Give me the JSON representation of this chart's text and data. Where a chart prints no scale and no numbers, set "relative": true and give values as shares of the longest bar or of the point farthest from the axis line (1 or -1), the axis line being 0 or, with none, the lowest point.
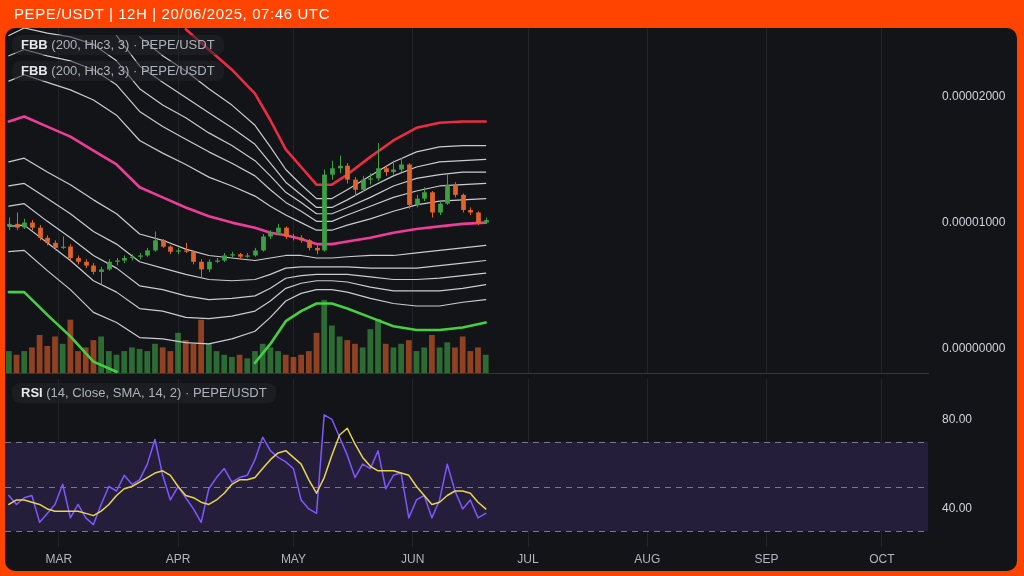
{
  "chart_data": [
    {
      "type": "candlestick",
      "title": "PEPE/USDT | 12H | 20/06/2025, 07:46 UTC",
      "annotations": [
        "FBB (200, Hlc3, 3) · PEPE/USDT",
        "FBB (200, Hlc3, 3) · PEPE/USDT"
      ],
      "x": [
        "2025-02-16",
        "2025-02-18",
        "2025-02-20",
        "2025-02-22",
        "2025-02-24",
        "2025-02-26",
        "2025-02-28",
        "2025-03-02",
        "2025-03-04",
        "2025-03-06",
        "2025-03-08",
        "2025-03-10",
        "2025-03-12",
        "2025-03-14",
        "2025-03-16",
        "2025-03-18",
        "2025-03-20",
        "2025-03-22",
        "2025-03-24",
        "2025-03-26",
        "2025-03-28",
        "2025-03-30",
        "2025-04-01",
        "2025-04-03",
        "2025-04-05",
        "2025-04-07",
        "2025-04-09",
        "2025-04-11",
        "2025-04-13",
        "2025-04-15",
        "2025-04-17",
        "2025-04-19",
        "2025-04-21",
        "2025-04-23",
        "2025-04-25",
        "2025-04-27",
        "2025-04-29",
        "2025-05-01",
        "2025-05-03",
        "2025-05-05",
        "2025-05-07",
        "2025-05-09",
        "2025-05-11",
        "2025-05-13",
        "2025-05-15",
        "2025-05-17",
        "2025-05-19",
        "2025-05-21",
        "2025-05-23",
        "2025-05-25",
        "2025-05-27",
        "2025-05-29",
        "2025-05-31",
        "2025-06-02",
        "2025-06-04",
        "2025-06-06",
        "2025-06-08",
        "2025-06-10",
        "2025-06-12",
        "2025-06-14",
        "2025-06-16",
        "2025-06-18",
        "2025-06-20"
      ],
      "ohlc": [
        [
          9.7e-06,
          1.04e-05,
          9.4e-06,
          9.9e-06
        ],
        [
          9.9e-06,
          1.08e-05,
          9.4e-06,
          9.6e-06
        ],
        [
          9.6e-06,
          1.03e-05,
          9.5e-06,
          1e-05
        ],
        [
          1e-05,
          1.02e-05,
          9.4e-06,
          9.6e-06
        ],
        [
          9.6e-06,
          9.8e-06,
          8.6e-06,
          8.8e-06
        ],
        [
          8.8e-06,
          9e-06,
          8.2e-06,
          8.4e-06
        ],
        [
          8.4e-06,
          8.6e-06,
          7.8e-06,
          8e-06
        ],
        [
          8e-06,
          8.9e-06,
          7.9e-06,
          8.1e-06
        ],
        [
          8.1e-06,
          8.3e-06,
          7e-06,
          7.2e-06
        ],
        [
          7.2e-06,
          7.4e-06,
          6.7e-06,
          6.9e-06
        ],
        [
          6.9e-06,
          7.1e-06,
          6.4e-06,
          6.6e-06
        ],
        [
          6.6e-06,
          6.8e-06,
          5.9e-06,
          6.1e-06
        ],
        [
          6.1e-06,
          6.5e-06,
          5.1e-06,
          6.3e-06
        ],
        [
          6.3e-06,
          7.1e-06,
          6.2e-06,
          6.9e-06
        ],
        [
          6.9e-06,
          7.2e-06,
          6.6e-06,
          7e-06
        ],
        [
          7e-06,
          7.4e-06,
          6.8e-06,
          7.2e-06
        ],
        [
          7.2e-06,
          7.5e-06,
          7e-06,
          7.3e-06
        ],
        [
          7.3e-06,
          7.6e-06,
          7.1e-06,
          7.4e-06
        ],
        [
          7.4e-06,
          8e-06,
          7.3e-06,
          7.8e-06
        ],
        [
          7.8e-06,
          9.3e-06,
          7.7e-06,
          8.6e-06
        ],
        [
          8.6e-06,
          8.7e-06,
          8e-06,
          8.1e-06
        ],
        [
          8.1e-06,
          8.2e-06,
          7.5e-06,
          7.7e-06
        ],
        [
          7.7e-06,
          8e-06,
          7.5e-06,
          7.8e-06
        ],
        [
          7.8e-06,
          8.4e-06,
          7.6e-06,
          7.7e-06
        ],
        [
          7.7e-06,
          7.8e-06,
          6.7e-06,
          6.9e-06
        ],
        [
          6.9e-06,
          7.1e-06,
          5.7e-06,
          6.3e-06
        ],
        [
          6.3e-06,
          7.1e-06,
          6.1e-06,
          6.9e-06
        ],
        [
          6.9e-06,
          7.2e-06,
          6.8e-06,
          7e-06
        ],
        [
          7e-06,
          7.6e-06,
          6.9e-06,
          7.4e-06
        ],
        [
          7.4e-06,
          7.7e-06,
          7.2e-06,
          7.5e-06
        ],
        [
          7.5e-06,
          7.6e-06,
          7.1e-06,
          7.3e-06
        ],
        [
          7.3e-06,
          7.6e-06,
          7.2e-06,
          7.4e-06
        ],
        [
          7.4e-06,
          8e-06,
          7.3e-06,
          7.8e-06
        ],
        [
          7.8e-06,
          9.1e-06,
          7.7e-06,
          8.9e-06
        ],
        [
          8.9e-06,
          9.4e-06,
          8.7e-06,
          9.2e-06
        ],
        [
          9.2e-06,
          9.9e-06,
          9e-06,
          9.6e-06
        ],
        [
          9.6e-06,
          9.7e-06,
          8.7e-06,
          8.9e-06
        ],
        [
          8.9e-06,
          9.1e-06,
          8.6e-06,
          8.8e-06
        ],
        [
          8.8e-06,
          9e-06,
          8.4e-06,
          8.6e-06
        ],
        [
          8.6e-06,
          8.7e-06,
          7.8e-06,
          8e-06
        ],
        [
          8e-06,
          8.2e-06,
          7.5e-06,
          7.8e-06
        ],
        [
          7.8e-06,
          1.42e-05,
          7.7e-06,
          1.38e-05
        ],
        [
          1.38e-05,
          1.49e-05,
          1.34e-05,
          1.43e-05
        ],
        [
          1.43e-05,
          1.53e-05,
          1.39e-05,
          1.45e-05
        ],
        [
          1.45e-05,
          1.47e-05,
          1.31e-05,
          1.34e-05
        ],
        [
          1.34e-05,
          1.36e-05,
          1.21e-05,
          1.26e-05
        ],
        [
          1.26e-05,
          1.37e-05,
          1.24e-05,
          1.34e-05
        ],
        [
          1.34e-05,
          1.39e-05,
          1.3e-05,
          1.35e-05
        ],
        [
          1.35e-05,
          1.63e-05,
          1.33e-05,
          1.43e-05
        ],
        [
          1.43e-05,
          1.45e-05,
          1.37e-05,
          1.4e-05
        ],
        [
          1.4e-05,
          1.49e-05,
          1.38e-05,
          1.42e-05
        ],
        [
          1.42e-05,
          1.51e-05,
          1.4e-05,
          1.46e-05
        ],
        [
          1.46e-05,
          1.47e-05,
          1.11e-05,
          1.14e-05
        ],
        [
          1.14e-05,
          1.22e-05,
          1.12e-05,
          1.19e-05
        ],
        [
          1.19e-05,
          1.28e-05,
          1.17e-05,
          1.24e-05
        ],
        [
          1.24e-05,
          1.25e-05,
          1.04e-05,
          1.08e-05
        ],
        [
          1.08e-05,
          1.17e-05,
          1.06e-05,
          1.15e-05
        ],
        [
          1.15e-05,
          1.38e-05,
          1.14e-05,
          1.3e-05
        ],
        [
          1.3e-05,
          1.32e-05,
          1.2e-05,
          1.22e-05
        ],
        [
          1.22e-05,
          1.23e-05,
          1.08e-05,
          1.1e-05
        ],
        [
          1.1e-05,
          1.12e-05,
          1.06e-05,
          1.08e-05
        ],
        [
          1.08e-05,
          1.09e-05,
          9.8e-06,
          1e-05
        ],
        [
          1e-05,
          1.04e-05,
          9.9e-06,
          1.02e-05
        ]
      ],
      "colors": [
        "#3f9f45",
        "#e0632a",
        "#3f9f45",
        "#e0632a",
        "#e0632a",
        "#e0632a",
        "#e0632a",
        "#3f9f45",
        "#e0632a",
        "#e0632a",
        "#e0632a",
        "#e0632a",
        "#3f9f45",
        "#3f9f45",
        "#3f9f45",
        "#3f9f45",
        "#3f9f45",
        "#3f9f45",
        "#3f9f45",
        "#3f9f45",
        "#e0632a",
        "#e0632a",
        "#3f9f45",
        "#e0632a",
        "#e0632a",
        "#e0632a",
        "#3f9f45",
        "#3f9f45",
        "#3f9f45",
        "#3f9f45",
        "#e0632a",
        "#3f9f45",
        "#3f9f45",
        "#3f9f45",
        "#3f9f45",
        "#3f9f45",
        "#e0632a",
        "#e0632a",
        "#e0632a",
        "#e0632a",
        "#e0632a",
        "#3f9f45",
        "#3f9f45",
        "#3f9f45",
        "#e0632a",
        "#e0632a",
        "#3f9f45",
        "#3f9f45",
        "#3f9f45",
        "#e0632a",
        "#3f9f45",
        "#3f9f45",
        "#e0632a",
        "#3f9f45",
        "#3f9f45",
        "#e0632a",
        "#3f9f45",
        "#3f9f45",
        "#e0632a",
        "#e0632a",
        "#e0632a",
        "#e0632a",
        "#3f9f45"
      ],
      "series": [
        {
          "type": "line",
          "color": "#ec2b45",
          "x": [
            "2025-04-03",
            "2025-04-09",
            "2025-04-15",
            "2025-04-21",
            "2025-04-25",
            "2025-04-29",
            "2025-05-03",
            "2025-05-07",
            "2025-05-11",
            "2025-05-15",
            "2025-05-21",
            "2025-05-27",
            "2025-06-02",
            "2025-06-08",
            "2025-06-14",
            "2025-06-20"
          ],
          "values": [
            2.53e-05,
            2.37e-05,
            2.21e-05,
            2.02e-05,
            1.81e-05,
            1.58e-05,
            1.44e-05,
            1.3e-05,
            1.3e-05,
            1.38e-05,
            1.52e-05,
            1.65e-05,
            1.75e-05,
            1.79e-05,
            1.8e-05,
            1.8e-05
          ]
        },
        {
          "type": "line",
          "color": "#c9cbd1",
          "x": [
            "2025-03-22",
            "2025-03-28",
            "2025-04-03",
            "2025-04-09",
            "2025-04-15",
            "2025-04-21",
            "2025-04-25",
            "2025-04-29",
            "2025-05-03",
            "2025-05-07",
            "2025-05-11",
            "2025-05-15",
            "2025-05-21",
            "2025-05-27",
            "2025-06-02",
            "2025-06-08",
            "2025-06-14",
            "2025-06-20"
          ],
          "values": [
            2.47e-05,
            2.32e-05,
            2.2e-05,
            2.06e-05,
            1.93e-05,
            1.77e-05,
            1.6e-05,
            1.42e-05,
            1.3e-05,
            1.19e-05,
            1.19e-05,
            1.26e-05,
            1.37e-05,
            1.48e-05,
            1.56e-05,
            1.6e-05,
            1.61e-05,
            1.61e-05
          ]
        },
        {
          "type": "line",
          "color": "#c9cbd1",
          "x": [
            "2025-03-16",
            "2025-03-22",
            "2025-03-28",
            "2025-04-03",
            "2025-04-09",
            "2025-04-15",
            "2025-04-21",
            "2025-04-25",
            "2025-04-29",
            "2025-05-03",
            "2025-05-07",
            "2025-05-11",
            "2025-05-15",
            "2025-05-21",
            "2025-05-27",
            "2025-06-02",
            "2025-06-08",
            "2025-06-14",
            "2025-06-20"
          ],
          "values": [
            2.48e-05,
            2.24e-05,
            2.11e-05,
            1.99e-05,
            1.87e-05,
            1.75e-05,
            1.62e-05,
            1.47e-05,
            1.32e-05,
            1.22e-05,
            1.12e-05,
            1.12e-05,
            1.18e-05,
            1.28e-05,
            1.37e-05,
            1.44e-05,
            1.48e-05,
            1.49e-05,
            1.5e-05
          ]
        },
        {
          "type": "line",
          "color": "#c9cbd1",
          "x": [
            "2025-02-16",
            "2025-02-20",
            "2025-02-26",
            "2025-03-04",
            "2025-03-10",
            "2025-03-16",
            "2025-03-22",
            "2025-03-28",
            "2025-04-03",
            "2025-04-09",
            "2025-04-15",
            "2025-04-21",
            "2025-04-25",
            "2025-04-29",
            "2025-05-03",
            "2025-05-07",
            "2025-05-11",
            "2025-05-15",
            "2025-05-21",
            "2025-05-27",
            "2025-06-02",
            "2025-06-08",
            "2025-06-14",
            "2025-06-20"
          ],
          "values": [
            2.48e-05,
            2.54e-05,
            2.5e-05,
            2.47e-05,
            2.41e-05,
            2.28e-05,
            2.06e-05,
            1.93e-05,
            1.83e-05,
            1.71e-05,
            1.61e-05,
            1.49e-05,
            1.37e-05,
            1.24e-05,
            1.16e-05,
            1.07e-05,
            1.07e-05,
            1.12e-05,
            1.2e-05,
            1.29e-05,
            1.35e-05,
            1.38e-05,
            1.4e-05,
            1.4e-05
          ]
        },
        {
          "type": "line",
          "color": "#c9cbd1",
          "x": [
            "2025-02-16",
            "2025-02-20",
            "2025-02-26",
            "2025-03-04",
            "2025-03-10",
            "2025-03-16",
            "2025-03-22",
            "2025-03-28",
            "2025-04-03",
            "2025-04-09",
            "2025-04-15",
            "2025-04-21",
            "2025-04-25",
            "2025-04-29",
            "2025-05-03",
            "2025-05-07",
            "2025-05-11",
            "2025-05-15",
            "2025-05-21",
            "2025-05-27",
            "2025-06-02",
            "2025-06-08",
            "2025-06-14",
            "2025-06-20"
          ],
          "values": [
            2.32e-05,
            2.37e-05,
            2.32e-05,
            2.28e-05,
            2.21e-05,
            2.09e-05,
            1.88e-05,
            1.76e-05,
            1.66e-05,
            1.56e-05,
            1.47e-05,
            1.37e-05,
            1.26e-05,
            1.16e-05,
            1.09e-05,
            1.01e-05,
            1.01e-05,
            1.06e-05,
            1.13e-05,
            1.2e-05,
            1.25e-05,
            1.29e-05,
            1.3e-05,
            1.31e-05
          ]
        },
        {
          "type": "line",
          "color": "#c9cbd1",
          "x": [
            "2025-02-16",
            "2025-02-20",
            "2025-02-26",
            "2025-03-04",
            "2025-03-10",
            "2025-03-16",
            "2025-03-22",
            "2025-03-28",
            "2025-04-03",
            "2025-04-09",
            "2025-04-15",
            "2025-04-21",
            "2025-04-25",
            "2025-04-29",
            "2025-05-03",
            "2025-05-07",
            "2025-05-11",
            "2025-05-15",
            "2025-05-21",
            "2025-05-27",
            "2025-06-02",
            "2025-06-08",
            "2025-06-14",
            "2025-06-20"
          ],
          "values": [
            2.12e-05,
            2.17e-05,
            2.11e-05,
            2.05e-05,
            1.97e-05,
            1.85e-05,
            1.65e-05,
            1.55e-05,
            1.46e-05,
            1.36e-05,
            1.29e-05,
            1.21e-05,
            1.13e-05,
            1.06e-05,
            1e-05,
            9.4e-06,
            9.4e-06,
            9.8e-06,
            1.03e-05,
            1.09e-05,
            1.14e-05,
            1.17e-05,
            1.18e-05,
            1.19e-05
          ]
        },
        {
          "type": "line",
          "color": "#ee3d98",
          "x": [
            "2025-02-16",
            "2025-02-20",
            "2025-02-26",
            "2025-03-04",
            "2025-03-10",
            "2025-03-16",
            "2025-03-22",
            "2025-03-28",
            "2025-04-03",
            "2025-04-09",
            "2025-04-15",
            "2025-04-21",
            "2025-04-25",
            "2025-04-29",
            "2025-05-03",
            "2025-05-07",
            "2025-05-11",
            "2025-05-15",
            "2025-05-21",
            "2025-05-27",
            "2025-06-02",
            "2025-06-08",
            "2025-06-14",
            "2025-06-20"
          ],
          "values": [
            1.8e-05,
            1.84e-05,
            1.76e-05,
            1.68e-05,
            1.57e-05,
            1.46e-05,
            1.28e-05,
            1.2e-05,
            1.12e-05,
            1.05e-05,
            1e-05,
            9.6e-06,
            9.2e-06,
            9e-06,
            8.7e-06,
            8.3e-06,
            8.3e-06,
            8.5e-06,
            8.8e-06,
            9.2e-06,
            9.5e-06,
            9.7e-06,
            9.9e-06,
            1e-05
          ]
        },
        {
          "type": "line",
          "color": "#c9cbd1",
          "x": [
            "2025-02-16",
            "2025-02-20",
            "2025-02-26",
            "2025-03-04",
            "2025-03-10",
            "2025-03-16",
            "2025-03-22",
            "2025-03-28",
            "2025-04-03",
            "2025-04-09",
            "2025-04-15",
            "2025-04-21",
            "2025-04-25",
            "2025-04-29",
            "2025-05-03",
            "2025-05-07",
            "2025-05-11",
            "2025-05-15",
            "2025-05-21",
            "2025-05-27",
            "2025-06-02",
            "2025-06-08",
            "2025-06-14",
            "2025-06-20"
          ],
          "values": [
            1.48e-05,
            1.51e-05,
            1.4e-05,
            1.3e-05,
            1.18e-05,
            1.07e-05,
            9.1e-06,
            8.6e-06,
            7.9e-06,
            7.4e-06,
            7.2e-06,
            7e-06,
            7.2e-06,
            7.4e-06,
            7.4e-06,
            7.2e-06,
            7.2e-06,
            7.3e-06,
            7.4e-06,
            7.4e-06,
            7.6e-06,
            7.8e-06,
            8e-06,
            8.2e-06
          ]
        },
        {
          "type": "line",
          "color": "#c9cbd1",
          "x": [
            "2025-02-16",
            "2025-02-20",
            "2025-02-26",
            "2025-03-04",
            "2025-03-10",
            "2025-03-16",
            "2025-03-22",
            "2025-03-28",
            "2025-04-03",
            "2025-04-09",
            "2025-04-15",
            "2025-04-21",
            "2025-04-25",
            "2025-04-29",
            "2025-05-03",
            "2025-05-07",
            "2025-05-11",
            "2025-05-15",
            "2025-05-21",
            "2025-05-27",
            "2025-06-02",
            "2025-06-08",
            "2025-06-14",
            "2025-06-20"
          ],
          "values": [
            1.29e-05,
            1.31e-05,
            1.19e-05,
            1.07e-05,
            9.3e-06,
            8.3e-06,
            6.9e-06,
            6.4e-06,
            5.9e-06,
            5.5e-06,
            5.4e-06,
            5.5e-06,
            5.9e-06,
            6.4e-06,
            6.5e-06,
            6.5e-06,
            6.5e-06,
            6.5e-06,
            6.4e-06,
            6.4e-06,
            6.4e-06,
            6.6e-06,
            6.8e-06,
            7e-06
          ]
        },
        {
          "type": "line",
          "color": "#c9cbd1",
          "x": [
            "2025-02-16",
            "2025-02-20",
            "2025-02-26",
            "2025-03-04",
            "2025-03-10",
            "2025-03-16",
            "2025-03-22",
            "2025-03-28",
            "2025-04-03",
            "2025-04-09",
            "2025-04-15",
            "2025-04-21",
            "2025-04-25",
            "2025-04-29",
            "2025-05-03",
            "2025-05-07",
            "2025-05-11",
            "2025-05-15",
            "2025-05-21",
            "2025-05-27",
            "2025-06-02",
            "2025-06-08",
            "2025-06-14",
            "2025-06-20"
          ],
          "values": [
            1.13e-05,
            1.15e-05,
            1.01e-05,
            8.8e-06,
            7.4e-06,
            6.4e-06,
            5e-06,
            4.7e-06,
            4.2e-06,
            3.9e-06,
            4e-06,
            4.2e-06,
            4.8e-06,
            5.6e-06,
            5.8e-06,
            5.9e-06,
            5.9e-06,
            5.9e-06,
            5.7e-06,
            5.5e-06,
            5.5e-06,
            5.6e-06,
            5.8e-06,
            6e-06
          ]
        },
        {
          "type": "line",
          "color": "#c9cbd1",
          "x": [
            "2025-02-16",
            "2025-02-20",
            "2025-02-26",
            "2025-03-04",
            "2025-03-10",
            "2025-03-16",
            "2025-03-22",
            "2025-03-28",
            "2025-04-03",
            "2025-04-09",
            "2025-04-15",
            "2025-04-21",
            "2025-04-25",
            "2025-04-29",
            "2025-05-03",
            "2025-05-07",
            "2025-05-11",
            "2025-05-15",
            "2025-05-21",
            "2025-05-27",
            "2025-06-02",
            "2025-06-08",
            "2025-06-14",
            "2025-06-20"
          ],
          "values": [
            9.7e-06,
            9.8e-06,
            8.4e-06,
            7e-06,
            5.4e-06,
            4.5e-06,
            3.2e-06,
            3e-06,
            2.5e-06,
            2.4e-06,
            2.6e-06,
            3e-06,
            3.8e-06,
            4.8e-06,
            5.2e-06,
            5.4e-06,
            5.4e-06,
            5.3e-06,
            4.9e-06,
            4.6e-06,
            4.6e-06,
            4.6e-06,
            4.8e-06,
            5.1e-06
          ]
        },
        {
          "type": "line",
          "color": "#c9cbd1",
          "x": [
            "2025-02-16",
            "2025-02-20",
            "2025-02-26",
            "2025-03-04",
            "2025-03-10",
            "2025-03-16",
            "2025-03-22",
            "2025-03-28",
            "2025-04-03",
            "2025-04-09",
            "2025-04-15",
            "2025-04-21",
            "2025-04-25",
            "2025-04-29",
            "2025-05-03",
            "2025-05-07",
            "2025-05-11",
            "2025-05-15",
            "2025-05-21",
            "2025-05-27",
            "2025-06-02",
            "2025-06-08",
            "2025-06-14",
            "2025-06-20"
          ],
          "values": [
            7.7e-06,
            7.8e-06,
            6.2e-06,
            4.7e-06,
            2.9e-06,
            2.1e-06,
            9e-07,
            8e-07,
            5e-07,
            4e-07,
            8e-07,
            1.4e-06,
            2.5e-06,
            3.8e-06,
            4.4e-06,
            4.7e-06,
            4.7e-06,
            4.5e-06,
            4e-06,
            3.6e-06,
            3.4e-06,
            3.4e-06,
            3.7e-06,
            3.9e-06
          ]
        },
        {
          "type": "line",
          "color": "#45cf42",
          "x": [
            "2025-02-16",
            "2025-02-20",
            "2025-02-26",
            "2025-03-04",
            "2025-03-10",
            "2025-03-16",
            "2025-03-22",
            "2025-03-28",
            "2025-04-03",
            "2025-04-09",
            "2025-04-15",
            "2025-04-21",
            "2025-04-25",
            "2025-04-29",
            "2025-05-03",
            "2025-05-07",
            "2025-05-11",
            "2025-05-15",
            "2025-05-21",
            "2025-05-27",
            "2025-06-02",
            "2025-06-08",
            "2025-06-14",
            "2025-06-20"
          ],
          "values": [
            4.5e-06,
            4.5e-06,
            2.7e-06,
            1e-06,
            -1e-06,
            -1.8e-06,
            null,
            null,
            null,
            null,
            null,
            -1.1e-06,
            4e-07,
            2.2e-06,
            3e-06,
            3.6e-06,
            3.6e-06,
            3.2e-06,
            2.5e-06,
            1.8e-06,
            1.5e-06,
            1.5e-06,
            1.7e-06,
            2.1e-06
          ]
        }
      ],
      "xlim": [
        "2025-02-15",
        "2025-10-13"
      ],
      "xticks": [
        {
          "value": "2025-03-01",
          "label": null
        },
        {
          "value": "2025-04-01",
          "label": null
        },
        {
          "value": "2025-05-01",
          "label": null
        },
        {
          "value": "2025-06-01",
          "label": null
        },
        {
          "value": "2025-07-01",
          "label": null
        },
        {
          "value": "2025-08-01",
          "label": null
        },
        {
          "value": "2025-09-01",
          "label": null
        },
        {
          "value": "2025-10-01",
          "label": null
        }
      ],
      "ylim": [
        -1.9e-06,
        2.54e-05
      ],
      "yticks": [
        {
          "value": 0,
          "label": "0.00000000"
        },
        {
          "value": 1e-05,
          "label": "0.00001000"
        },
        {
          "value": 2e-05,
          "label": "0.00002000"
        }
      ],
      "grid": "x",
      "tick_labels": "y"
    },
    {
      "type": "bar",
      "relative": true,
      "x": [
        "2025-02-16",
        "2025-02-18",
        "2025-02-20",
        "2025-02-22",
        "2025-02-24",
        "2025-02-26",
        "2025-02-28",
        "2025-03-02",
        "2025-03-04",
        "2025-03-06",
        "2025-03-08",
        "2025-03-10",
        "2025-03-12",
        "2025-03-14",
        "2025-03-16",
        "2025-03-18",
        "2025-03-20",
        "2025-03-22",
        "2025-03-24",
        "2025-03-26",
        "2025-03-28",
        "2025-03-30",
        "2025-04-01",
        "2025-04-03",
        "2025-04-05",
        "2025-04-07",
        "2025-04-09",
        "2025-04-11",
        "2025-04-13",
        "2025-04-15",
        "2025-04-17",
        "2025-04-19",
        "2025-04-21",
        "2025-04-23",
        "2025-04-25",
        "2025-04-27",
        "2025-04-29",
        "2025-05-01",
        "2025-05-03",
        "2025-05-05",
        "2025-05-07",
        "2025-05-09",
        "2025-05-11",
        "2025-05-13",
        "2025-05-15",
        "2025-05-17",
        "2025-05-19",
        "2025-05-21",
        "2025-05-23",
        "2025-05-25",
        "2025-05-27",
        "2025-05-29",
        "2025-05-31",
        "2025-06-02",
        "2025-06-04",
        "2025-06-06",
        "2025-06-08",
        "2025-06-10",
        "2025-06-12",
        "2025-06-14",
        "2025-06-16",
        "2025-06-18",
        "2025-06-20"
      ],
      "values": [
        0.3,
        0.25,
        0.3,
        0.35,
        0.52,
        0.37,
        0.5,
        0.4,
        0.73,
        0.3,
        0.35,
        0.45,
        0.5,
        0.3,
        0.25,
        0.3,
        0.35,
        0.33,
        0.3,
        0.4,
        0.35,
        0.3,
        0.55,
        0.45,
        0.4,
        0.73,
        0.4,
        0.3,
        0.25,
        0.22,
        0.25,
        0.2,
        0.3,
        0.4,
        0.35,
        0.3,
        0.25,
        0.22,
        0.25,
        0.3,
        0.55,
        1,
        0.65,
        0.5,
        0.45,
        0.4,
        0.35,
        0.6,
        0.74,
        0.4,
        0.35,
        0.4,
        0.45,
        0.3,
        0.35,
        0.52,
        0.35,
        0.42,
        0.35,
        0.5,
        0.3,
        0.35,
        0.25
      ],
      "colors": [
        "#2d6b34",
        "#8f4122",
        "#2d6b34",
        "#8f4122",
        "#8f4122",
        "#8f4122",
        "#8f4122",
        "#2d6b34",
        "#8f4122",
        "#8f4122",
        "#8f4122",
        "#8f4122",
        "#2d6b34",
        "#2d6b34",
        "#2d6b34",
        "#2d6b34",
        "#2d6b34",
        "#2d6b34",
        "#2d6b34",
        "#2d6b34",
        "#8f4122",
        "#8f4122",
        "#2d6b34",
        "#8f4122",
        "#8f4122",
        "#8f4122",
        "#2d6b34",
        "#2d6b34",
        "#2d6b34",
        "#2d6b34",
        "#8f4122",
        "#2d6b34",
        "#2d6b34",
        "#2d6b34",
        "#2d6b34",
        "#2d6b34",
        "#8f4122",
        "#8f4122",
        "#8f4122",
        "#8f4122",
        "#8f4122",
        "#2d6b34",
        "#2d6b34",
        "#2d6b34",
        "#8f4122",
        "#8f4122",
        "#2d6b34",
        "#2d6b34",
        "#2d6b34",
        "#8f4122",
        "#2d6b34",
        "#2d6b34",
        "#8f4122",
        "#2d6b34",
        "#2d6b34",
        "#8f4122",
        "#2d6b34",
        "#2d6b34",
        "#8f4122",
        "#8f4122",
        "#8f4122",
        "#8f4122",
        "#2d6b34"
      ],
      "xlim": [
        "2025-02-15",
        "2025-10-13"
      ],
      "tick_labels": false
    },
    {
      "type": "line",
      "annotations": [
        "RSI (14, Close, SMA, 14, 2) · PEPE/USDT"
      ],
      "x": [
        "2025-02-16",
        "2025-02-18",
        "2025-02-20",
        "2025-02-22",
        "2025-02-24",
        "2025-02-26",
        "2025-02-28",
        "2025-03-02",
        "2025-03-04",
        "2025-03-06",
        "2025-03-08",
        "2025-03-10",
        "2025-03-12",
        "2025-03-14",
        "2025-03-16",
        "2025-03-18",
        "2025-03-20",
        "2025-03-22",
        "2025-03-24",
        "2025-03-26",
        "2025-03-28",
        "2025-03-30",
        "2025-04-01",
        "2025-04-03",
        "2025-04-05",
        "2025-04-07",
        "2025-04-09",
        "2025-04-11",
        "2025-04-13",
        "2025-04-15",
        "2025-04-17",
        "2025-04-19",
        "2025-04-21",
        "2025-04-23",
        "2025-04-25",
        "2025-04-27",
        "2025-04-29",
        "2025-05-01",
        "2025-05-03",
        "2025-05-05",
        "2025-05-07",
        "2025-05-09",
        "2025-05-11",
        "2025-05-13",
        "2025-05-15",
        "2025-05-17",
        "2025-05-19",
        "2025-05-21",
        "2025-05-23",
        "2025-05-25",
        "2025-05-27",
        "2025-05-29",
        "2025-05-31",
        "2025-06-02",
        "2025-06-04",
        "2025-06-06",
        "2025-06-08",
        "2025-06-10",
        "2025-06-12",
        "2025-06-14",
        "2025-06-16",
        "2025-06-18",
        "2025-06-20"
      ],
      "series": [
        {
          "color": "#7e57ff",
          "values": [
            46,
            42,
            45,
            46,
            34,
            38,
            42,
            51,
            36,
            42,
            36,
            33,
            42,
            50,
            48,
            55,
            51,
            53,
            60,
            71,
            55,
            44,
            50,
            45,
            40,
            34,
            49,
            54,
            58,
            52,
            54,
            55,
            62,
            72,
            66,
            63,
            61,
            58,
            44,
            40,
            38,
            82,
            80,
            72,
            64,
            54,
            60,
            58,
            66,
            49,
            55,
            56,
            36,
            44,
            46,
            36,
            44,
            60,
            48,
            40,
            44,
            36,
            38
          ]
        },
        {
          "color": "#e6d64f",
          "values": [
            42,
            44,
            44,
            43,
            42,
            40,
            39,
            39,
            39,
            39,
            38,
            37,
            39,
            42,
            46,
            49,
            50,
            52,
            54,
            56,
            57,
            55,
            50,
            46,
            45,
            43,
            42,
            44,
            47,
            51,
            53,
            53,
            54,
            58,
            62,
            65,
            66,
            63,
            60,
            53,
            47,
            54,
            64,
            73,
            76,
            69,
            63,
            59,
            57,
            57,
            57,
            56,
            55,
            50,
            46,
            42,
            43,
            46,
            48,
            48,
            47,
            43,
            40
          ]
        }
      ],
      "xlim": [
        "2025-02-15",
        "2025-10-13"
      ],
      "xticks": [
        {
          "value": "2025-03-01",
          "label": "MAR"
        },
        {
          "value": "2025-04-01",
          "label": "APR"
        },
        {
          "value": "2025-05-01",
          "label": "MAY"
        },
        {
          "value": "2025-06-01",
          "label": "JUN"
        },
        {
          "value": "2025-07-01",
          "label": "JUL"
        },
        {
          "value": "2025-08-01",
          "label": "AUG"
        },
        {
          "value": "2025-09-01",
          "label": "SEP"
        },
        {
          "value": "2025-10-01",
          "label": "OCT"
        }
      ],
      "ylim": [
        23,
        98
      ],
      "yticks": [
        {
          "value": 80,
          "label": "80.00"
        },
        {
          "value": 40,
          "label": "40.00"
        }
      ],
      "bands": [
        {
          "axis": "y",
          "from": 30,
          "to": 70,
          "color": "#251e3b"
        }
      ],
      "ref_lines": [
        {
          "axis": "y",
          "value": 70,
          "color": "#787b86",
          "line_style": "dashed"
        },
        {
          "axis": "y",
          "value": 50,
          "color": "#787b86",
          "line_style": "dashed"
        },
        {
          "axis": "y",
          "value": 30,
          "color": "#787b86",
          "line_style": "dashed"
        }
      ],
      "grid": "x"
    }
  ]
}
